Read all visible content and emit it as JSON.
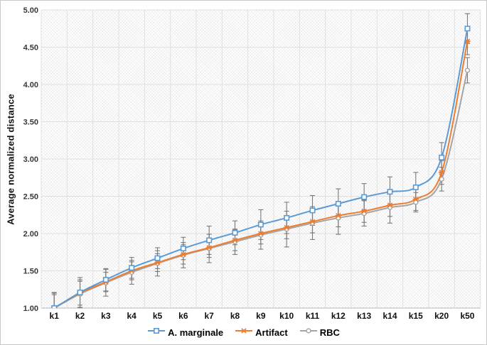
{
  "chart_data": {
    "type": "line",
    "title": "",
    "xlabel": "",
    "ylabel": "Average normalized distance",
    "ylim": [
      1.0,
      5.0
    ],
    "yticks": [
      "1.00",
      "1.50",
      "2.00",
      "2.50",
      "3.00",
      "3.50",
      "4.00",
      "4.50",
      "5.00"
    ],
    "grid": true,
    "legend_position": "bottom",
    "categories": [
      "k1",
      "k2",
      "k3",
      "k4",
      "k5",
      "k6",
      "k7",
      "k8",
      "k9",
      "k10",
      "k11",
      "k12",
      "k13",
      "k14",
      "k15",
      "k20",
      "k50"
    ],
    "series": [
      {
        "name": "A. marginale",
        "color": "#5b9bd5",
        "marker": "square",
        "values": [
          1.0,
          1.21,
          1.38,
          1.54,
          1.67,
          1.8,
          1.91,
          2.01,
          2.12,
          2.21,
          2.31,
          2.4,
          2.49,
          2.56,
          2.62,
          3.02,
          4.75
        ],
        "errors": [
          0.21,
          0.2,
          0.15,
          0.14,
          0.14,
          0.15,
          0.19,
          0.16,
          0.2,
          0.21,
          0.2,
          0.2,
          0.18,
          0.2,
          0.2,
          0.2,
          0.2
        ]
      },
      {
        "name": "Artifact",
        "color": "#ed7d31",
        "marker": "xstar",
        "values": [
          1.0,
          1.2,
          1.35,
          1.5,
          1.61,
          1.72,
          1.81,
          1.91,
          2.0,
          2.08,
          2.16,
          2.24,
          2.3,
          2.38,
          2.46,
          2.82,
          4.58
        ],
        "errors": [
          0.18,
          0.16,
          0.13,
          0.12,
          0.12,
          0.13,
          0.13,
          0.14,
          0.14,
          0.15,
          0.15,
          0.15,
          0.15,
          0.15,
          0.15,
          0.16,
          0.18
        ]
      },
      {
        "name": "RBC",
        "color": "#a5a5a5",
        "marker": "circle",
        "values": [
          1.0,
          1.19,
          1.34,
          1.48,
          1.6,
          1.71,
          1.8,
          1.89,
          1.98,
          2.06,
          2.14,
          2.21,
          2.27,
          2.35,
          2.42,
          2.73,
          4.19
        ],
        "errors": [
          0.2,
          0.19,
          0.18,
          0.16,
          0.17,
          0.17,
          0.19,
          0.17,
          0.19,
          0.24,
          0.22,
          0.22,
          0.17,
          0.21,
          0.13,
          0.16,
          0.17
        ]
      }
    ],
    "error_bar_color": "#7a7a7a",
    "grid_color": "#e0e0e0",
    "axis_color": "#b5b5b5"
  }
}
